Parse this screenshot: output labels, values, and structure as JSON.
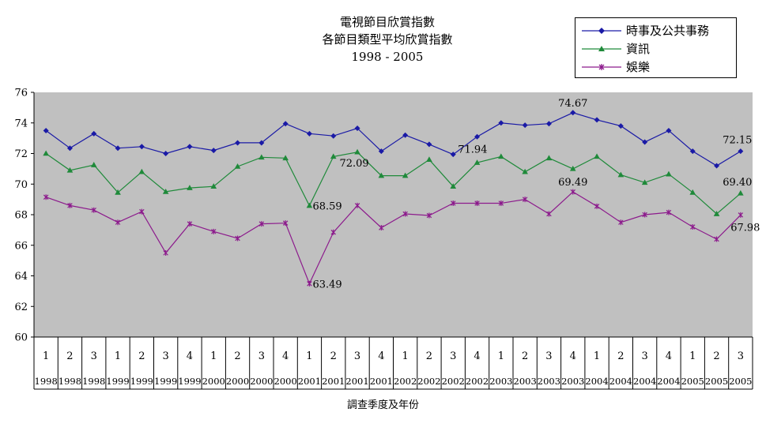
{
  "chart_data": {
    "type": "line",
    "title": "電視節目欣賞指數",
    "subtitle": "各節目類型平均欣賞指數",
    "period": "1998 - 2005",
    "xlabel": "調查季度及年份",
    "ylabel": "",
    "ylim": [
      60,
      76
    ],
    "yticks": [
      "60",
      "62",
      "64",
      "66",
      "68",
      "70",
      "72",
      "74",
      "76"
    ],
    "grid": false,
    "legend": "top-right",
    "categories": [
      {
        "quarter": "1",
        "year": "1998"
      },
      {
        "quarter": "2",
        "year": "1998"
      },
      {
        "quarter": "3",
        "year": "1998"
      },
      {
        "quarter": "1",
        "year": "1999"
      },
      {
        "quarter": "2",
        "year": "1999"
      },
      {
        "quarter": "3",
        "year": "1999"
      },
      {
        "quarter": "4",
        "year": "1999"
      },
      {
        "quarter": "1",
        "year": "2000"
      },
      {
        "quarter": "2",
        "year": "2000"
      },
      {
        "quarter": "3",
        "year": "2000"
      },
      {
        "quarter": "4",
        "year": "2000"
      },
      {
        "quarter": "1",
        "year": "2001"
      },
      {
        "quarter": "2",
        "year": "2001"
      },
      {
        "quarter": "3",
        "year": "2001"
      },
      {
        "quarter": "4",
        "year": "2001"
      },
      {
        "quarter": "1",
        "year": "2002"
      },
      {
        "quarter": "2",
        "year": "2002"
      },
      {
        "quarter": "3",
        "year": "2002"
      },
      {
        "quarter": "4",
        "year": "2002"
      },
      {
        "quarter": "1",
        "year": "2003"
      },
      {
        "quarter": "2",
        "year": "2003"
      },
      {
        "quarter": "3",
        "year": "2003"
      },
      {
        "quarter": "4",
        "year": "2003"
      },
      {
        "quarter": "1",
        "year": "2004"
      },
      {
        "quarter": "2",
        "year": "2004"
      },
      {
        "quarter": "3",
        "year": "2004"
      },
      {
        "quarter": "4",
        "year": "2004"
      },
      {
        "quarter": "1",
        "year": "2005"
      },
      {
        "quarter": "2",
        "year": "2005"
      },
      {
        "quarter": "3",
        "year": "2005"
      }
    ],
    "series": [
      {
        "name": "時事及公共事務",
        "color": "#1a1aa6",
        "marker": "diamond",
        "values": [
          73.5,
          72.35,
          73.3,
          72.35,
          72.45,
          72.0,
          72.45,
          72.2,
          72.7,
          72.7,
          73.95,
          73.3,
          73.15,
          73.65,
          72.15,
          73.2,
          72.6,
          71.94,
          73.1,
          74.0,
          73.85,
          73.95,
          74.67,
          74.2,
          73.8,
          72.75,
          73.5,
          72.15,
          71.2,
          72.15
        ],
        "annotations": [
          {
            "index": 17,
            "text": "71.94"
          },
          {
            "index": 22,
            "text": "74.67"
          },
          {
            "index": 29,
            "text": "72.15"
          }
        ]
      },
      {
        "name": "資訊",
        "color": "#1f8a3a",
        "marker": "triangle",
        "values": [
          72.0,
          70.9,
          71.25,
          69.45,
          70.8,
          69.5,
          69.75,
          69.85,
          71.15,
          71.75,
          71.7,
          68.59,
          71.8,
          72.09,
          70.55,
          70.55,
          71.6,
          69.85,
          71.4,
          71.8,
          70.8,
          71.7,
          71.0,
          71.8,
          70.6,
          70.1,
          70.65,
          69.45,
          68.05,
          69.4
        ],
        "annotations": [
          {
            "index": 11,
            "text": "68.59"
          },
          {
            "index": 13,
            "text": "72.09"
          },
          {
            "index": 29,
            "text": "69.40"
          }
        ]
      },
      {
        "name": "娛樂",
        "color": "#8c1a8c",
        "marker": "star",
        "values": [
          69.15,
          68.6,
          68.3,
          67.5,
          68.2,
          65.5,
          67.4,
          66.9,
          66.45,
          67.4,
          67.45,
          63.49,
          66.85,
          68.6,
          67.15,
          68.05,
          67.95,
          68.75,
          68.75,
          68.75,
          69.0,
          68.05,
          69.49,
          68.55,
          67.5,
          68.0,
          68.15,
          67.2,
          66.4,
          67.98
        ],
        "annotations": [
          {
            "index": 11,
            "text": "63.49"
          },
          {
            "index": 22,
            "text": "69.49"
          },
          {
            "index": 29,
            "text": "67.98"
          }
        ]
      }
    ]
  }
}
